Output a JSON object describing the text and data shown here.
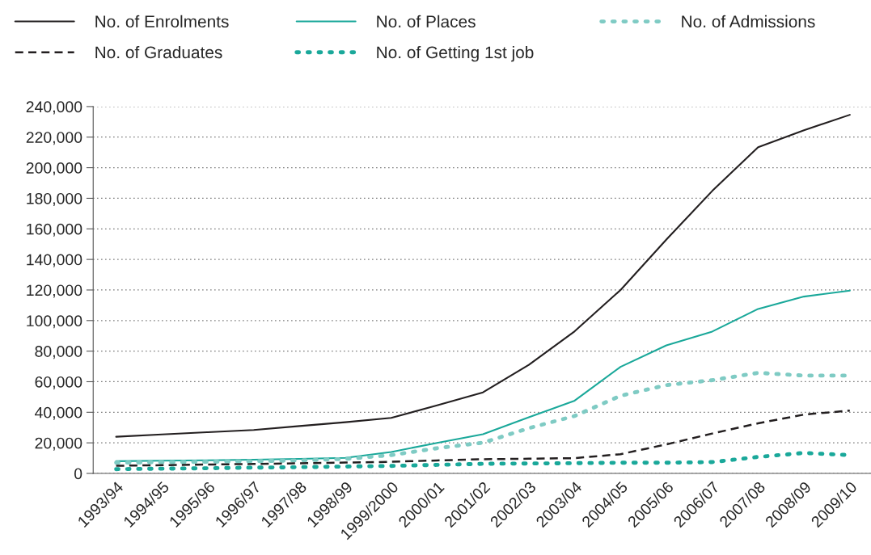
{
  "chart_data": {
    "type": "line",
    "categories": [
      "1993/94",
      "1994/95",
      "1995/96",
      "1996/97",
      "1997/98",
      "1998/99",
      "1999/2000",
      "2000/01",
      "2001/02",
      "2002/03",
      "2003/04",
      "2004/05",
      "2005/06",
      "2006/07",
      "2007/08",
      "2008/09",
      "2009/10"
    ],
    "series": [
      {
        "name": "No. of Enrolments",
        "color": "#231f20",
        "line_style": "solid",
        "values": [
          24000,
          25500,
          27000,
          28400,
          31000,
          33500,
          36300,
          44500,
          53000,
          71000,
          93000,
          120000,
          153000,
          184800,
          213400,
          224500,
          234600
        ]
      },
      {
        "name": "No. of Places",
        "color": "#1aa89a",
        "line_style": "solid",
        "values": [
          8000,
          8300,
          8600,
          9000,
          9500,
          10200,
          14000,
          20000,
          25600,
          36700,
          47600,
          69700,
          83800,
          92800,
          107600,
          115700,
          119600
        ]
      },
      {
        "name": "No. of Admissions",
        "color": "#7fcbc4",
        "line_style": "dotted",
        "values": [
          7000,
          7300,
          7600,
          8000,
          8500,
          9500,
          12000,
          16500,
          20100,
          29600,
          37600,
          50800,
          57800,
          61000,
          65800,
          64000,
          64000
        ]
      },
      {
        "name": "No. of Graduates",
        "color": "#231f20",
        "line_style": "dashed",
        "values": [
          5000,
          5400,
          5800,
          6200,
          6600,
          7100,
          7600,
          8500,
          9300,
          9600,
          10000,
          12600,
          19000,
          26100,
          32800,
          38500,
          41100
        ]
      },
      {
        "name": "No. of Getting 1st job",
        "color": "#1aa89a",
        "line_style": "dotted",
        "values": [
          2800,
          3100,
          3400,
          3800,
          4100,
          4500,
          4900,
          5600,
          6300,
          6500,
          6700,
          7000,
          7000,
          7400,
          10800,
          13400,
          12000
        ]
      }
    ],
    "ylim": [
      0,
      240000
    ],
    "yticks": [
      0,
      {
        "value": 20000,
        "label": "20,000"
      },
      {
        "value": 40000,
        "label": "40,000"
      },
      {
        "value": 60000,
        "label": "60,000"
      },
      {
        "value": 80000,
        "label": "80,000"
      },
      {
        "value": 100000,
        "label": "100,000"
      },
      {
        "value": 120000,
        "label": "120,000"
      },
      {
        "value": 140000,
        "label": "140,000"
      },
      {
        "value": 160000,
        "label": "160,000"
      },
      {
        "value": 180000,
        "label": "180,000"
      },
      {
        "value": 200000,
        "label": "200,000"
      },
      {
        "value": 220000,
        "label": "220,000"
      },
      {
        "value": 240000,
        "label": "240,000"
      }
    ],
    "grid": "y",
    "legend": "top left"
  }
}
